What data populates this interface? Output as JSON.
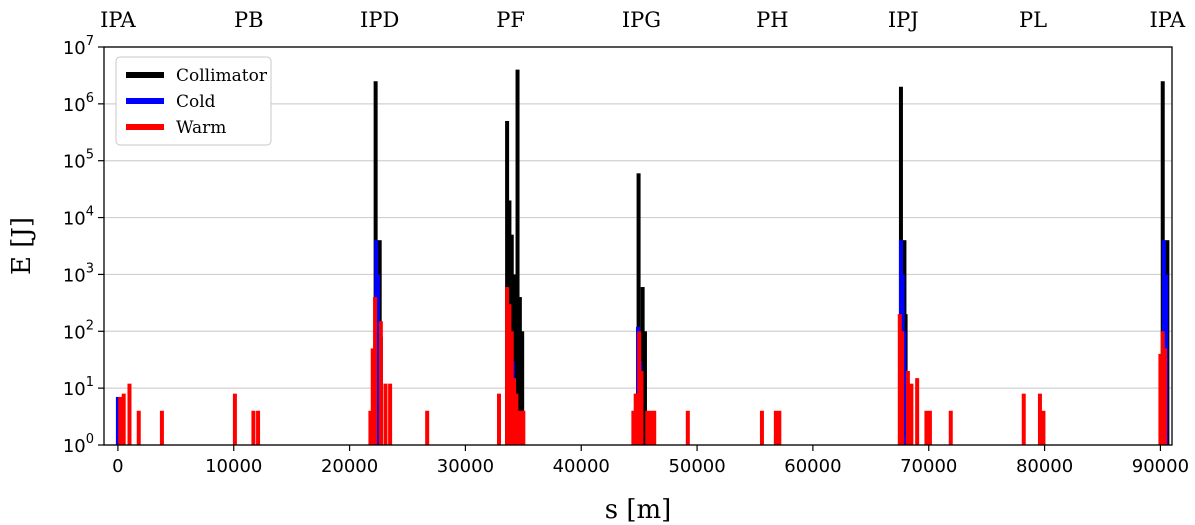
{
  "chart_data": {
    "type": "bar",
    "xlabel": "s [m]",
    "ylabel": "E [J]",
    "xlim": [
      -1200,
      91000
    ],
    "ylim": [
      1,
      10000000
    ],
    "yscale": "log",
    "grid": "horizontal",
    "legend_position": "top-left",
    "xticks": [
      0,
      10000,
      20000,
      30000,
      40000,
      50000,
      60000,
      70000,
      80000,
      90000
    ],
    "xtick_labels": [
      "0",
      "10000",
      "20000",
      "30000",
      "40000",
      "50000",
      "60000",
      "70000",
      "80000",
      "90000"
    ],
    "yticks": [
      {
        "value": 1,
        "base": "10",
        "exp": "0"
      },
      {
        "value": 10,
        "base": "10",
        "exp": "1"
      },
      {
        "value": 100,
        "base": "10",
        "exp": "2"
      },
      {
        "value": 1000,
        "base": "10",
        "exp": "3"
      },
      {
        "value": 10000,
        "base": "10",
        "exp": "4"
      },
      {
        "value": 100000,
        "base": "10",
        "exp": "5"
      },
      {
        "value": 1000000,
        "base": "10",
        "exp": "6"
      },
      {
        "value": 10000000,
        "base": "10",
        "exp": "7"
      }
    ],
    "top_labels": [
      {
        "label": "IPA",
        "s": 0
      },
      {
        "label": "PB",
        "s": 11300
      },
      {
        "label": "IPD",
        "s": 22600
      },
      {
        "label": "PF",
        "s": 33900
      },
      {
        "label": "IPG",
        "s": 45200
      },
      {
        "label": "PH",
        "s": 56500
      },
      {
        "label": "IPJ",
        "s": 67800
      },
      {
        "label": "PL",
        "s": 79000
      },
      {
        "label": "IPA",
        "s": 90600
      }
    ],
    "series": [
      {
        "name": "Collimator",
        "color": "#000000",
        "points": [
          [
            22250,
            2500000
          ],
          [
            22600,
            4000
          ],
          [
            22500,
            200
          ],
          [
            22700,
            80
          ],
          [
            33600,
            500000
          ],
          [
            33800,
            20000
          ],
          [
            34000,
            5000
          ],
          [
            34200,
            1000
          ],
          [
            34500,
            4000000
          ],
          [
            34700,
            400
          ],
          [
            34900,
            100
          ],
          [
            44950,
            60000
          ],
          [
            45300,
            600
          ],
          [
            45500,
            100
          ],
          [
            67600,
            2000000
          ],
          [
            67900,
            4000
          ],
          [
            68000,
            200
          ],
          [
            90200,
            2500000
          ],
          [
            90600,
            4000
          ],
          [
            90450,
            200
          ]
        ]
      },
      {
        "name": "Cold",
        "color": "#0000ff",
        "points": [
          [
            0,
            7
          ],
          [
            22300,
            4000
          ],
          [
            22450,
            1000
          ],
          [
            22550,
            100
          ],
          [
            33700,
            200
          ],
          [
            33900,
            80
          ],
          [
            34100,
            30
          ],
          [
            44900,
            120
          ],
          [
            45100,
            30
          ],
          [
            67600,
            4000
          ],
          [
            67750,
            1000
          ],
          [
            67900,
            100
          ],
          [
            90300,
            4000
          ],
          [
            90500,
            1000
          ]
        ]
      },
      {
        "name": "Warm",
        "color": "#ff0000",
        "points": [
          [
            200,
            7
          ],
          [
            500,
            8
          ],
          [
            1000,
            12
          ],
          [
            1800,
            4
          ],
          [
            3800,
            4
          ],
          [
            10100,
            8
          ],
          [
            11700,
            4
          ],
          [
            12100,
            4
          ],
          [
            21800,
            4
          ],
          [
            22000,
            50
          ],
          [
            22200,
            400
          ],
          [
            22700,
            150
          ],
          [
            23100,
            12
          ],
          [
            23500,
            12
          ],
          [
            26700,
            4
          ],
          [
            32900,
            8
          ],
          [
            33600,
            600
          ],
          [
            33800,
            300
          ],
          [
            34000,
            100
          ],
          [
            34200,
            15
          ],
          [
            34400,
            8
          ],
          [
            34600,
            4
          ],
          [
            34900,
            4
          ],
          [
            35000,
            4
          ],
          [
            44500,
            4
          ],
          [
            44700,
            8
          ],
          [
            45000,
            100
          ],
          [
            45200,
            20
          ],
          [
            45700,
            4
          ],
          [
            46000,
            4
          ],
          [
            46300,
            4
          ],
          [
            49200,
            4
          ],
          [
            55600,
            4
          ],
          [
            56800,
            4
          ],
          [
            57100,
            4
          ],
          [
            67500,
            200
          ],
          [
            67700,
            100
          ],
          [
            68200,
            20
          ],
          [
            68500,
            12
          ],
          [
            69000,
            15
          ],
          [
            69800,
            4
          ],
          [
            70100,
            4
          ],
          [
            71900,
            4
          ],
          [
            78200,
            8
          ],
          [
            79600,
            8
          ],
          [
            79900,
            4
          ],
          [
            90000,
            40
          ],
          [
            90200,
            100
          ],
          [
            90400,
            50
          ]
        ]
      }
    ]
  }
}
